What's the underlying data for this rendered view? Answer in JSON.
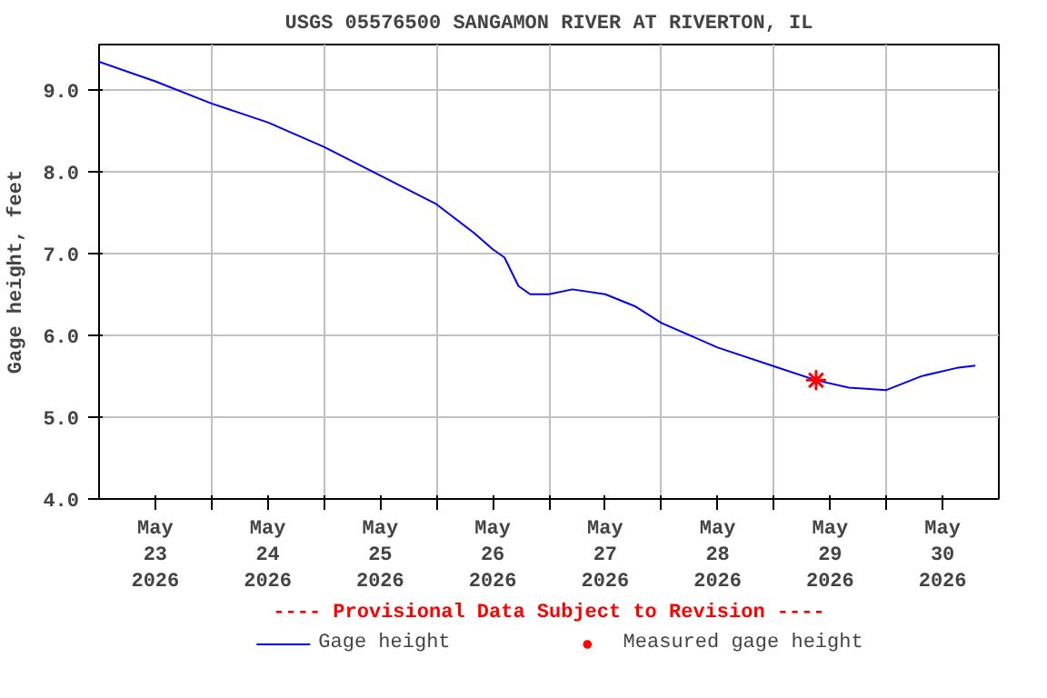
{
  "chart_data": {
    "type": "line",
    "title": "USGS 05576500 SANGAMON RIVER AT RIVERTON, IL",
    "ylabel": "Gage height, feet",
    "annotations": [
      "---- Provisional Data Subject to Revision ----"
    ],
    "series": [
      {
        "name": "Gage height",
        "color": "#0000ff",
        "marker": "none",
        "x": [
          "2026-05-23T00:00",
          "2026-05-23T12:00",
          "2026-05-24T00:00",
          "2026-05-24T12:00",
          "2026-05-25T00:00",
          "2026-05-25T12:00",
          "2026-05-26T00:00",
          "2026-05-26T08:00",
          "2026-05-26T12:00",
          "2026-05-26T14:30",
          "2026-05-26T17:30",
          "2026-05-26T20:00",
          "2026-05-27T00:00",
          "2026-05-27T05:00",
          "2026-05-27T12:00",
          "2026-05-27T18:30",
          "2026-05-28T00:00",
          "2026-05-28T12:00",
          "2026-05-29T00:00",
          "2026-05-29T09:00",
          "2026-05-29T16:00",
          "2026-05-30T00:00",
          "2026-05-30T07:30",
          "2026-05-30T15:00",
          "2026-05-30T19:00"
        ],
        "values": [
          9.34,
          9.1,
          8.83,
          8.6,
          8.3,
          7.95,
          7.6,
          7.25,
          7.05,
          6.95,
          6.6,
          6.5,
          6.5,
          6.56,
          6.5,
          6.35,
          6.15,
          5.85,
          5.62,
          5.45,
          5.36,
          5.33,
          5.5,
          5.6,
          5.63
        ]
      },
      {
        "name": "Measured gage height",
        "type": "scatter",
        "color": "#ff0000",
        "marker": "cross",
        "x": [
          "2026-05-29T09:00"
        ],
        "values": [
          5.45
        ]
      }
    ],
    "xlim": [
      "2026-05-23T00:00",
      "2026-05-31T00:00"
    ],
    "xticks": [
      {
        "value": "2026-05-23T12:00",
        "label": "May\n23\n2026"
      },
      {
        "value": "2026-05-24T00:00",
        "label": null
      },
      {
        "value": "2026-05-24T12:00",
        "label": "May\n24\n2026"
      },
      {
        "value": "2026-05-25T00:00",
        "label": null
      },
      {
        "value": "2026-05-25T12:00",
        "label": "May\n25\n2026"
      },
      {
        "value": "2026-05-26T00:00",
        "label": null
      },
      {
        "value": "2026-05-26T12:00",
        "label": "May\n26\n2026"
      },
      {
        "value": "2026-05-27T00:00",
        "label": null
      },
      {
        "value": "2026-05-27T12:00",
        "label": "May\n27\n2026"
      },
      {
        "value": "2026-05-28T00:00",
        "label": null
      },
      {
        "value": "2026-05-28T12:00",
        "label": "May\n28\n2026"
      },
      {
        "value": "2026-05-29T00:00",
        "label": null
      },
      {
        "value": "2026-05-29T12:00",
        "label": "May\n29\n2026"
      },
      {
        "value": "2026-05-30T00:00",
        "label": null
      },
      {
        "value": "2026-05-30T12:00",
        "label": "May\n30\n2026"
      }
    ],
    "ylim": [
      4.0,
      9.55
    ],
    "yticks": [
      {
        "value": 4,
        "label": "4.0"
      },
      {
        "value": 5,
        "label": "5.0"
      },
      {
        "value": 6,
        "label": "6.0"
      },
      {
        "value": 7,
        "label": "7.0"
      },
      {
        "value": 8,
        "label": "8.0"
      },
      {
        "value": 9,
        "label": "9.0"
      }
    ],
    "grid": true,
    "legend": "bottom"
  }
}
